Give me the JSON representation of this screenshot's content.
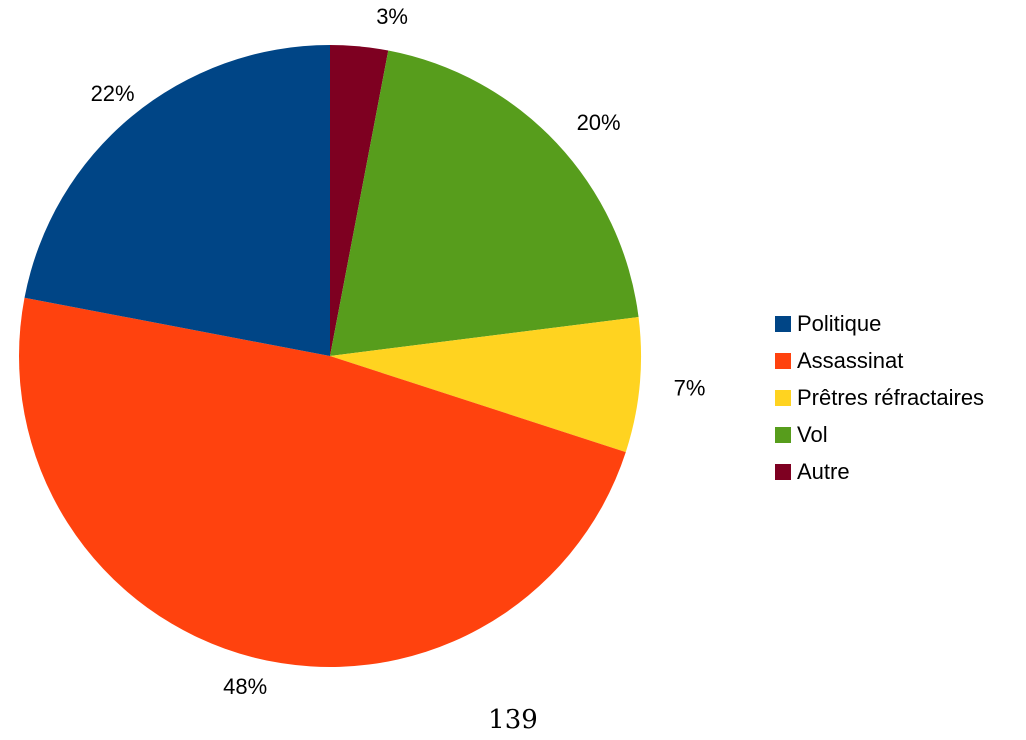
{
  "chart_data": {
    "type": "pie",
    "title": "",
    "start_angle_deg": 0,
    "direction": "clockwise",
    "slices": [
      {
        "label": "Autre",
        "value": 3,
        "value_label": "3%",
        "color": "#7e0021"
      },
      {
        "label": "Vol",
        "value": 20,
        "value_label": "20%",
        "color": "#579d1c"
      },
      {
        "label": "Prêtres réfractaires",
        "value": 7,
        "value_label": "7%",
        "color": "#ffd320"
      },
      {
        "label": "Assassinat",
        "value": 48,
        "value_label": "48%",
        "color": "#ff420e"
      },
      {
        "label": "Politique",
        "value": 22,
        "value_label": "22%",
        "color": "#004586"
      }
    ],
    "legend": {
      "position": "right",
      "entries": [
        {
          "label": "Politique",
          "color": "#004586"
        },
        {
          "label": "Assassinat",
          "color": "#ff420e"
        },
        {
          "label": "Prêtres réfractaires",
          "color": "#ffd320"
        },
        {
          "label": "Vol",
          "color": "#579d1c"
        },
        {
          "label": "Autre",
          "color": "#7e0021"
        }
      ]
    }
  },
  "page_number": "139"
}
